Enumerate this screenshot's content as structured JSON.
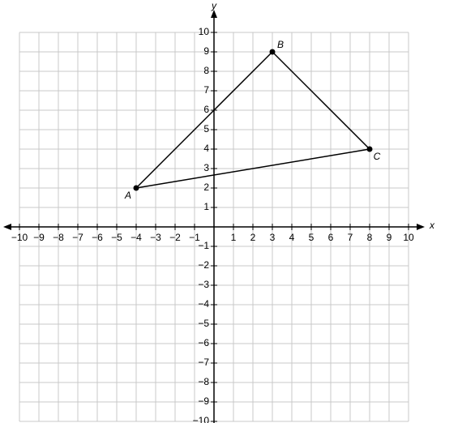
{
  "chart_data": {
    "type": "polygon",
    "x_label": "x",
    "y_label": "y",
    "x": [
      -4,
      3,
      8
    ],
    "values": [
      2,
      9,
      4
    ],
    "point_labels": [
      "A",
      "B",
      "C"
    ],
    "color": "#000000",
    "grid": true,
    "xlim": [
      -10,
      10
    ],
    "ylim": [
      -10,
      10
    ],
    "xticks": [
      {
        "value": -10,
        "label": "−10"
      },
      {
        "value": -9,
        "label": "−9"
      },
      {
        "value": -8,
        "label": "−8"
      },
      {
        "value": -7,
        "label": "−7"
      },
      {
        "value": -6,
        "label": "−6"
      },
      {
        "value": -5,
        "label": "−5"
      },
      {
        "value": -4,
        "label": "−4"
      },
      {
        "value": -3,
        "label": "−3"
      },
      {
        "value": -2,
        "label": "−2"
      },
      {
        "value": -1,
        "label": "−1"
      },
      1,
      2,
      3,
      4,
      5,
      6,
      7,
      8,
      9,
      10
    ],
    "yticks": [
      {
        "value": -10,
        "label": "−10"
      },
      {
        "value": -9,
        "label": "−9"
      },
      {
        "value": -8,
        "label": "−8"
      },
      {
        "value": -7,
        "label": "−7"
      },
      {
        "value": -6,
        "label": "−6"
      },
      {
        "value": -5,
        "label": "−5"
      },
      {
        "value": -4,
        "label": "−4"
      },
      {
        "value": -3,
        "label": "−3"
      },
      {
        "value": -2,
        "label": "−2"
      },
      {
        "value": -1,
        "label": "−1"
      },
      1,
      2,
      3,
      4,
      5,
      6,
      7,
      8,
      9,
      10
    ]
  }
}
